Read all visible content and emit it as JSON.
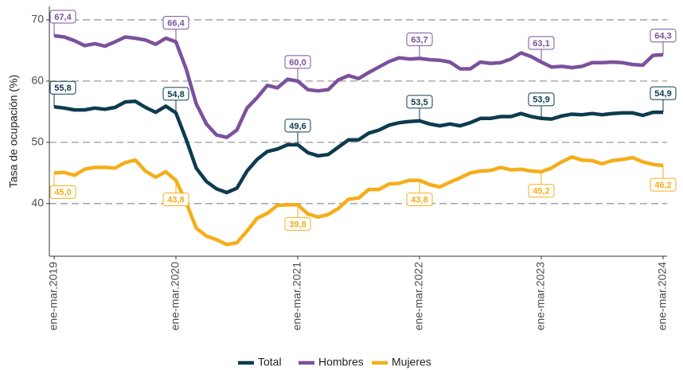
{
  "chart_data": {
    "type": "line",
    "y_label": "Tasa de ocupación (%)",
    "categories": [
      "ene-mar.2019",
      null,
      null,
      null,
      null,
      null,
      null,
      null,
      null,
      null,
      null,
      null,
      "ene-mar.2020",
      null,
      null,
      null,
      null,
      null,
      null,
      null,
      null,
      null,
      null,
      null,
      "ene-mar.2021",
      null,
      null,
      null,
      null,
      null,
      null,
      null,
      null,
      null,
      null,
      null,
      "ene-mar.2022",
      null,
      null,
      null,
      null,
      null,
      null,
      null,
      null,
      null,
      null,
      null,
      "ene-mar.2023",
      null,
      null,
      null,
      null,
      null,
      null,
      null,
      null,
      null,
      null,
      null,
      "ene-mar.2024"
    ],
    "series": [
      {
        "name": "Total",
        "color": "#0d3b4f",
        "label_position": "above",
        "values": [
          55.8,
          55.6,
          55.3,
          55.3,
          55.6,
          55.4,
          55.7,
          56.6,
          56.7,
          55.7,
          54.9,
          55.9,
          54.8,
          50.5,
          45.8,
          43.6,
          42.4,
          41.8,
          42.5,
          45.3,
          47.2,
          48.5,
          48.9,
          49.6,
          49.6,
          48.3,
          47.8,
          48.0,
          49.2,
          50.4,
          50.4,
          51.5,
          52.0,
          52.8,
          53.2,
          53.4,
          53.5,
          53.0,
          52.7,
          53.0,
          52.7,
          53.2,
          53.9,
          53.9,
          54.2,
          54.2,
          54.7,
          54.2,
          53.9,
          53.8,
          54.3,
          54.6,
          54.5,
          54.7,
          54.5,
          54.7,
          54.8,
          54.8,
          54.4,
          54.9,
          54.9
        ],
        "value_labels": [
          "55,8",
          null,
          null,
          null,
          null,
          null,
          null,
          null,
          null,
          null,
          null,
          null,
          "54,8",
          null,
          null,
          null,
          null,
          null,
          null,
          null,
          null,
          null,
          null,
          null,
          "49,6",
          null,
          null,
          null,
          null,
          null,
          null,
          null,
          null,
          null,
          null,
          null,
          "53,5",
          null,
          null,
          null,
          null,
          null,
          null,
          null,
          null,
          null,
          null,
          null,
          "53,9",
          null,
          null,
          null,
          null,
          null,
          null,
          null,
          null,
          null,
          null,
          null,
          "54,9"
        ]
      },
      {
        "name": "Hombres",
        "color": "#7b519c",
        "label_position": "above",
        "values": [
          67.4,
          67.2,
          66.6,
          65.8,
          66.1,
          65.7,
          66.4,
          67.2,
          67.0,
          66.7,
          66.0,
          67.0,
          66.4,
          62.0,
          56.3,
          53.0,
          51.2,
          50.8,
          52.0,
          55.6,
          57.3,
          59.3,
          58.9,
          60.3,
          60.0,
          58.6,
          58.4,
          58.6,
          60.2,
          60.9,
          60.4,
          61.4,
          62.3,
          63.2,
          63.8,
          63.6,
          63.7,
          63.5,
          63.4,
          63.1,
          62.0,
          62.0,
          63.1,
          62.9,
          63.0,
          63.6,
          64.6,
          64.0,
          63.1,
          62.3,
          62.4,
          62.2,
          62.4,
          63.0,
          63.0,
          63.1,
          63.0,
          62.7,
          62.6,
          64.2,
          64.3
        ],
        "value_labels": [
          "67,4",
          null,
          null,
          null,
          null,
          null,
          null,
          null,
          null,
          null,
          null,
          null,
          "66,4",
          null,
          null,
          null,
          null,
          null,
          null,
          null,
          null,
          null,
          null,
          null,
          "60,0",
          null,
          null,
          null,
          null,
          null,
          null,
          null,
          null,
          null,
          null,
          null,
          "63,7",
          null,
          null,
          null,
          null,
          null,
          null,
          null,
          null,
          null,
          null,
          null,
          "63,1",
          null,
          null,
          null,
          null,
          null,
          null,
          null,
          null,
          null,
          null,
          null,
          "64,3"
        ]
      },
      {
        "name": "Mujeres",
        "color": "#f5ae19",
        "label_position": "below",
        "values": [
          45.0,
          45.1,
          44.6,
          45.6,
          45.9,
          45.9,
          45.8,
          46.7,
          47.1,
          45.3,
          44.3,
          45.2,
          43.8,
          40.2,
          36.0,
          34.7,
          34.1,
          33.3,
          33.6,
          35.5,
          37.6,
          38.4,
          39.7,
          39.8,
          39.8,
          38.3,
          37.8,
          38.2,
          39.2,
          40.7,
          40.9,
          42.3,
          42.3,
          43.2,
          43.3,
          43.8,
          43.8,
          43.1,
          42.7,
          43.5,
          44.2,
          45.0,
          45.3,
          45.4,
          45.9,
          45.5,
          45.6,
          45.3,
          45.2,
          45.8,
          46.8,
          47.6,
          47.1,
          47.0,
          46.5,
          47.0,
          47.2,
          47.5,
          46.8,
          46.4,
          46.2
        ],
        "value_labels": [
          "45,0",
          null,
          null,
          null,
          null,
          null,
          null,
          null,
          null,
          null,
          null,
          null,
          "43,8",
          null,
          null,
          null,
          null,
          null,
          null,
          null,
          null,
          null,
          null,
          null,
          "39,8",
          null,
          null,
          null,
          null,
          null,
          null,
          null,
          null,
          null,
          null,
          null,
          "43,8",
          null,
          null,
          null,
          null,
          null,
          null,
          null,
          null,
          null,
          null,
          null,
          "45,2",
          null,
          null,
          null,
          null,
          null,
          null,
          null,
          null,
          null,
          null,
          null,
          "46,2"
        ]
      }
    ],
    "ylim": [
      31.4,
      72.2
    ],
    "yticks": [
      40,
      50,
      60,
      70
    ],
    "grid": true,
    "legend": "bottom"
  }
}
